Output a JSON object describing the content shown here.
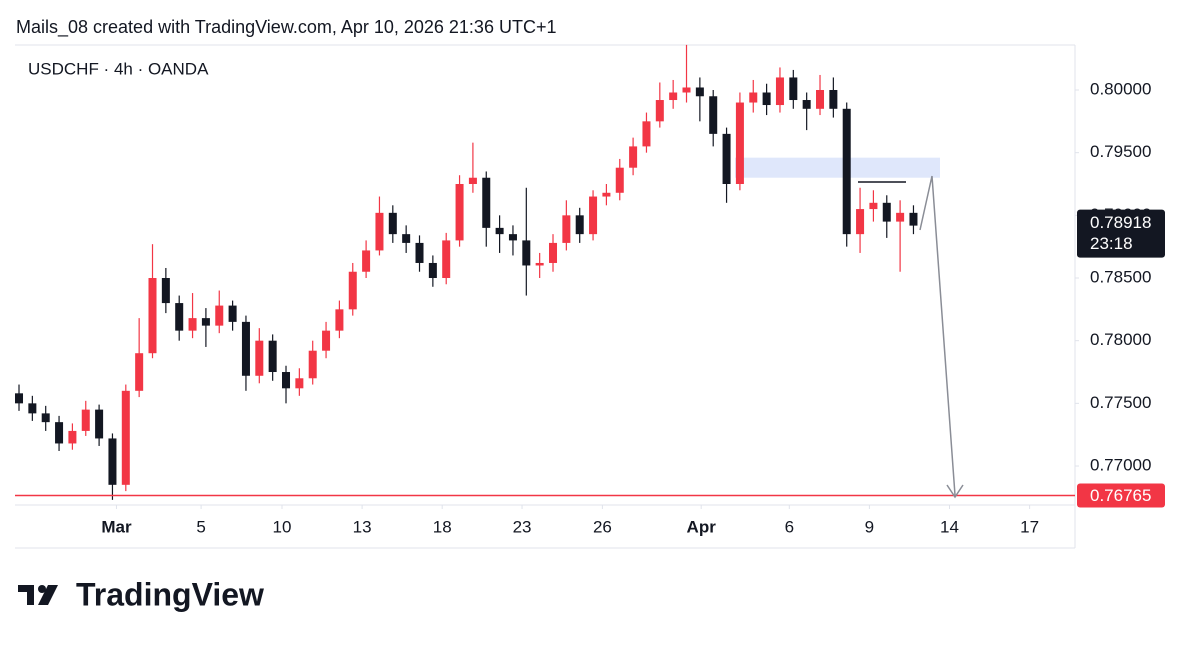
{
  "header": {
    "attribution": "Mails_08 created with TradingView.com, Apr 10, 2026 21:36 UTC+1"
  },
  "footer": {
    "logo": "TradingView"
  },
  "chart_data": {
    "type": "candlestick",
    "title": "USDCHF · 4h · OANDA",
    "up_color": "#f23645",
    "down_color": "#131722",
    "x": [
      -3.75,
      -3.25,
      -2.75,
      -2.25,
      -1.75,
      -1.25,
      -0.75,
      -0.25,
      0.25,
      0.75,
      1.25,
      1.75,
      2.25,
      2.75,
      3.25,
      3.75,
      4.25,
      4.75,
      5.25,
      5.75,
      6.25,
      6.75,
      7.25,
      7.75,
      8.25,
      8.75,
      9.25,
      9.75,
      10.25,
      10.75,
      11.25,
      11.75,
      12.25,
      12.75,
      13.25,
      13.75,
      14.25,
      14.75,
      15.25,
      15.75,
      16.25,
      16.75,
      17.25,
      17.75,
      18.25,
      18.75,
      19.25,
      19.75,
      20.25,
      20.75,
      21.25,
      21.75,
      22.25,
      22.75,
      23.25,
      23.75,
      24.25,
      24.75,
      25.25,
      25.75,
      26.25,
      26.75,
      27.25,
      27.75,
      28.25,
      28.75,
      29.25,
      29.75
    ],
    "open": [
      0.7758,
      0.775,
      0.7742,
      0.7735,
      0.7718,
      0.7728,
      0.7745,
      0.7722,
      0.7685,
      0.776,
      0.779,
      0.785,
      0.783,
      0.7808,
      0.7818,
      0.7812,
      0.7828,
      0.7815,
      0.7772,
      0.78,
      0.7775,
      0.7762,
      0.777,
      0.7792,
      0.7808,
      0.7825,
      0.7855,
      0.7872,
      0.7902,
      0.7885,
      0.7878,
      0.7862,
      0.785,
      0.788,
      0.7925,
      0.793,
      0.789,
      0.7885,
      0.788,
      0.786,
      0.7862,
      0.7878,
      0.79,
      0.7885,
      0.7915,
      0.7918,
      0.7938,
      0.7955,
      0.7975,
      0.7992,
      0.7998,
      0.8002,
      0.7995,
      0.7965,
      0.7925,
      0.799,
      0.7998,
      0.7988,
      0.801,
      0.7992,
      0.7985,
      0.8,
      0.7985,
      0.7885,
      0.7905,
      0.791,
      0.7895,
      0.7902
    ],
    "high": [
      0.7765,
      0.7756,
      0.7748,
      0.774,
      0.7734,
      0.7752,
      0.7749,
      0.7726,
      0.7765,
      0.7818,
      0.7877,
      0.7858,
      0.7836,
      0.7838,
      0.7826,
      0.784,
      0.7832,
      0.782,
      0.781,
      0.7805,
      0.778,
      0.7778,
      0.78,
      0.7815,
      0.7832,
      0.7862,
      0.788,
      0.7915,
      0.7908,
      0.7892,
      0.7884,
      0.7868,
      0.7886,
      0.7932,
      0.7958,
      0.7935,
      0.79,
      0.7892,
      0.7922,
      0.787,
      0.7885,
      0.7912,
      0.7906,
      0.792,
      0.7925,
      0.7945,
      0.7962,
      0.7982,
      0.8006,
      0.8008,
      0.8036,
      0.801,
      0.8,
      0.797,
      0.7998,
      0.8008,
      0.8005,
      0.8018,
      0.8016,
      0.7998,
      0.8012,
      0.801,
      0.799,
      0.7922,
      0.792,
      0.7916,
      0.7912,
      0.7908
    ],
    "low": [
      0.7744,
      0.7736,
      0.7728,
      0.7712,
      0.7713,
      0.7724,
      0.7716,
      0.7673,
      0.768,
      0.7755,
      0.7786,
      0.7822,
      0.78,
      0.7802,
      0.7795,
      0.7806,
      0.7808,
      0.776,
      0.7766,
      0.7768,
      0.775,
      0.7756,
      0.7765,
      0.7786,
      0.7802,
      0.782,
      0.785,
      0.7868,
      0.7878,
      0.787,
      0.7855,
      0.7843,
      0.7845,
      0.7875,
      0.7918,
      0.7875,
      0.787,
      0.7868,
      0.7836,
      0.785,
      0.7855,
      0.7872,
      0.7878,
      0.788,
      0.7908,
      0.7912,
      0.7932,
      0.795,
      0.797,
      0.7985,
      0.799,
      0.7975,
      0.7955,
      0.791,
      0.792,
      0.7982,
      0.798,
      0.7982,
      0.7985,
      0.7968,
      0.798,
      0.7978,
      0.7875,
      0.787,
      0.7895,
      0.7882,
      0.7855,
      0.7885
    ],
    "close": [
      0.775,
      0.7742,
      0.7735,
      0.7718,
      0.7728,
      0.7745,
      0.7722,
      0.7685,
      0.776,
      0.779,
      0.785,
      0.783,
      0.7808,
      0.7818,
      0.7812,
      0.7828,
      0.7815,
      0.7772,
      0.78,
      0.7775,
      0.7762,
      0.777,
      0.7792,
      0.7808,
      0.7825,
      0.7855,
      0.7872,
      0.7902,
      0.7885,
      0.7878,
      0.7862,
      0.785,
      0.788,
      0.7925,
      0.793,
      0.789,
      0.7885,
      0.788,
      0.786,
      0.7862,
      0.7878,
      0.79,
      0.7885,
      0.7915,
      0.7918,
      0.7938,
      0.7955,
      0.7975,
      0.7992,
      0.7998,
      0.8002,
      0.7995,
      0.7965,
      0.7925,
      0.799,
      0.7998,
      0.7988,
      0.801,
      0.7992,
      0.7985,
      0.8,
      0.7985,
      0.7885,
      0.7905,
      0.791,
      0.7895,
      0.7902,
      0.78918
    ],
    "xlim": [
      -3.9,
      35.8
    ],
    "ylim": [
      0.76689,
      0.80359
    ],
    "xticks": [
      {
        "value": -0.1,
        "label": "Mar"
      },
      {
        "value": 3.07,
        "label": "5"
      },
      {
        "value": 6.1,
        "label": "10"
      },
      {
        "value": 9.1,
        "label": "13"
      },
      {
        "value": 12.1,
        "label": "18"
      },
      {
        "value": 15.09,
        "label": "23"
      },
      {
        "value": 18.1,
        "label": "26"
      },
      {
        "value": 21.8,
        "label": "Apr"
      },
      {
        "value": 25.1,
        "label": "6"
      },
      {
        "value": 28.1,
        "label": "9"
      },
      {
        "value": 31.1,
        "label": "14"
      },
      {
        "value": 34.1,
        "label": "17"
      }
    ],
    "yticks": [
      {
        "value": 0.77,
        "label": "0.77000"
      },
      {
        "value": 0.775,
        "label": "0.77500"
      },
      {
        "value": 0.78,
        "label": "0.78000"
      },
      {
        "value": 0.785,
        "label": "0.78500"
      },
      {
        "value": 0.79,
        "label": "0.79000"
      },
      {
        "value": 0.795,
        "label": "0.79500"
      },
      {
        "value": 0.8,
        "label": "0.80000"
      }
    ],
    "hline": {
      "value": 0.76765,
      "color": "#f23645"
    },
    "zone": {
      "ylim": [
        0.793,
        0.7946
      ],
      "color": "#dfe7fb"
    },
    "countdown": "23:18"
  }
}
